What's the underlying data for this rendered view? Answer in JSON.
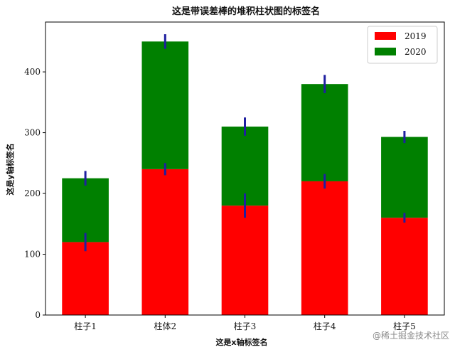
{
  "chart_data": {
    "type": "bar",
    "stacked": true,
    "title": "这是带误差棒的堆积柱状图的标签名",
    "xlabel": "这是x轴标签名",
    "ylabel": "这是y轴标签名",
    "categories": [
      "柱子1",
      "柱体2",
      "柱子3",
      "柱子4",
      "柱子5"
    ],
    "series": [
      {
        "name": "2019",
        "color": "#ff0000",
        "values": [
          120,
          240,
          180,
          220,
          160
        ],
        "errors": [
          15,
          10,
          20,
          12,
          8
        ]
      },
      {
        "name": "2020",
        "color": "#008000",
        "values": [
          105,
          210,
          130,
          160,
          133
        ],
        "errors": [
          12,
          12,
          15,
          15,
          10
        ]
      }
    ],
    "error_bar_color": "#1f1fa0",
    "ylim": [
      0,
      482
    ],
    "yticks": [
      0,
      100,
      200,
      300,
      400
    ],
    "grid": false,
    "legend_position": "top-right"
  },
  "watermark": "@稀土掘金技术社区"
}
